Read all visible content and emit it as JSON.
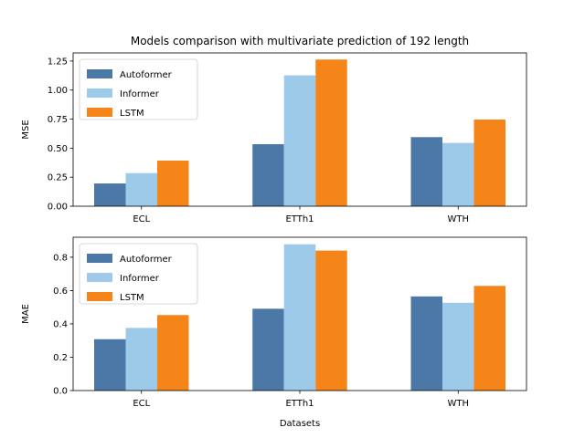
{
  "title": "Models comparison with multivariate prediction of 192 length",
  "chart_data": [
    {
      "type": "bar",
      "categories": [
        "ECL",
        "ETTh1",
        "WTH"
      ],
      "series": [
        {
          "name": "Autoformer",
          "values": [
            0.196,
            0.534,
            0.595
          ],
          "color": "#4c78a8"
        },
        {
          "name": "Informer",
          "values": [
            0.285,
            1.127,
            0.545
          ],
          "color": "#9ecae9"
        },
        {
          "name": "LSTM",
          "values": [
            0.393,
            1.263,
            0.746
          ],
          "color": "#f58518"
        }
      ],
      "xlabel": "",
      "ylabel": "MSE",
      "ylim": [
        0,
        1.32
      ],
      "yticks": [
        0.0,
        0.25,
        0.5,
        0.75,
        1.0,
        1.25
      ],
      "ytick_labels": [
        "0.00",
        "0.25",
        "0.50",
        "0.75",
        "1.00",
        "1.25"
      ],
      "legend": "top-left",
      "grid": false
    },
    {
      "type": "bar",
      "categories": [
        "ECL",
        "ETTh1",
        "WTH"
      ],
      "series": [
        {
          "name": "Autoformer",
          "values": [
            0.308,
            0.491,
            0.565
          ],
          "color": "#4c78a8"
        },
        {
          "name": "Informer",
          "values": [
            0.376,
            0.878,
            0.527
          ],
          "color": "#9ecae9"
        },
        {
          "name": "LSTM",
          "values": [
            0.453,
            0.84,
            0.628
          ],
          "color": "#f58518"
        }
      ],
      "xlabel": "Datasets",
      "ylabel": "MAE",
      "ylim": [
        0,
        0.92
      ],
      "yticks": [
        0.0,
        0.2,
        0.4,
        0.6,
        0.8
      ],
      "ytick_labels": [
        "0.0",
        "0.2",
        "0.4",
        "0.6",
        "0.8"
      ],
      "legend": "top-left",
      "grid": false
    }
  ]
}
